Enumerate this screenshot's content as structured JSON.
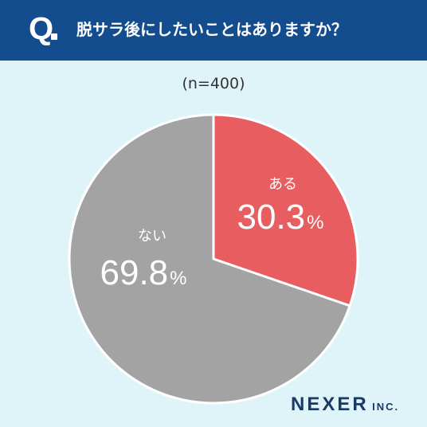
{
  "header": {
    "q_label": "Q",
    "question": "脱サラ後にしたいことはありますか？",
    "bg_color": "#134d8e"
  },
  "sample_size": "(n=400)",
  "brand": {
    "name": "NEXER",
    "suffix": "INC."
  },
  "chart_data": {
    "type": "pie",
    "title": "",
    "start": "12 o'clock, clockwise",
    "slices": [
      {
        "label": "ある",
        "value": 30.3,
        "display": "30.3",
        "unit": "%",
        "color": "#e85d5f"
      },
      {
        "label": "ない",
        "value": 69.8,
        "display": "69.8",
        "unit": "%",
        "color": "#a3a3a3"
      }
    ]
  }
}
